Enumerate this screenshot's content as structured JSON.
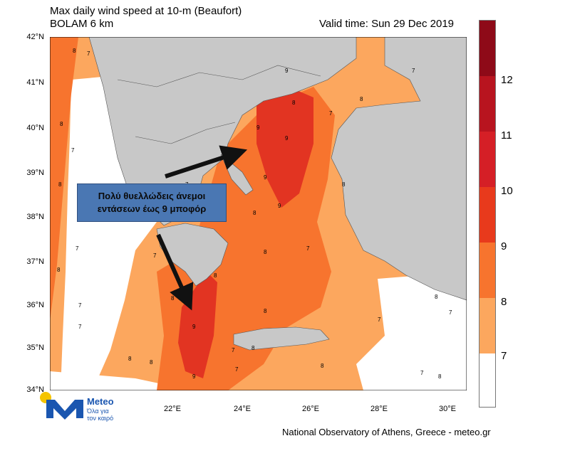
{
  "header": {
    "title_line1": "Max daily wind speed at 10-m (Beaufort)",
    "title_line2": "BOLAM 6 km",
    "valid_time": "Valid time: Sun 29 Dec 2019"
  },
  "axes": {
    "lat_labels": [
      "42°N",
      "41°N",
      "40°N",
      "39°N",
      "38°N",
      "37°N",
      "36°N",
      "35°N",
      "34°N"
    ],
    "lon_labels": [
      "22°E",
      "24°E",
      "26°E",
      "28°E",
      "30°E"
    ]
  },
  "colorbar": {
    "labels": [
      "12",
      "11",
      "10",
      "9",
      "8",
      "7"
    ],
    "colors": {
      "b7": "#ffffff",
      "b8": "#fca75e",
      "b9": "#f7742e",
      "b10": "#e83a1c",
      "b11": "#d51f26",
      "b12": "#b8141f",
      "b13": "#8e0a18"
    }
  },
  "callout": {
    "line1": "Πολύ θυελλώδεις άνεμοι",
    "line2": "εντάσεων έως 9 μποφόρ"
  },
  "map_labels": [
    "8",
    "7",
    "8",
    "7",
    "8",
    "7",
    "8",
    "7",
    "9",
    "9",
    "9",
    "8",
    "8",
    "7",
    "9",
    "8",
    "8",
    "9",
    "7",
    "7",
    "8",
    "8",
    "8",
    "7",
    "9",
    "8",
    "7",
    "8",
    "7",
    "8",
    "7",
    "8",
    "7",
    "9",
    "8",
    "7",
    "8",
    "7",
    "8",
    "7"
  ],
  "logo": {
    "name": "Meteo",
    "tagline_line1": "Όλα για",
    "tagline_line2": "τον καιρό"
  },
  "credit": "National Observatory of Athens, Greece - meteo.gr"
}
